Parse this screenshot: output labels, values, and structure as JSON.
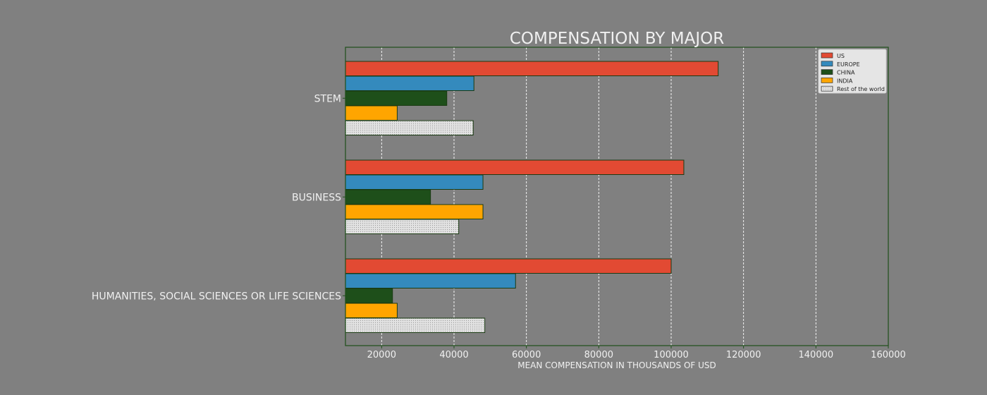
{
  "chart_data": {
    "type": "bar",
    "orientation": "horizontal",
    "title": "COMPENSATION BY MAJOR",
    "xlabel": "MEAN COMPENSATION IN THOUSANDS OF USD",
    "ylabel": "",
    "xlim": [
      10000,
      160000
    ],
    "x_ticks": [
      20000,
      40000,
      60000,
      80000,
      100000,
      120000,
      140000,
      160000
    ],
    "grid": "vertical dashed, white",
    "legend_position": "top-right",
    "categories": [
      "STEM",
      "BUSINESS",
      "HUMANITIES, SOCIAL SCIENCES OR LIFE SCIENCES"
    ],
    "series": [
      {
        "name": "US",
        "color": "#e24a33",
        "values": [
          113000,
          103500,
          100000
        ]
      },
      {
        "name": "EUROPE",
        "color": "#348abd",
        "values": [
          45500,
          48000,
          57000
        ]
      },
      {
        "name": "CHINA",
        "color": "#1e4f1a",
        "values": [
          38000,
          33500,
          23000
        ]
      },
      {
        "name": "INDIA",
        "color": "#ffa500",
        "values": [
          24300,
          48000,
          24300
        ]
      },
      {
        "name": "Rest of the world",
        "color": "#dcdcdc",
        "values": [
          45300,
          41300,
          48500
        ]
      }
    ]
  }
}
